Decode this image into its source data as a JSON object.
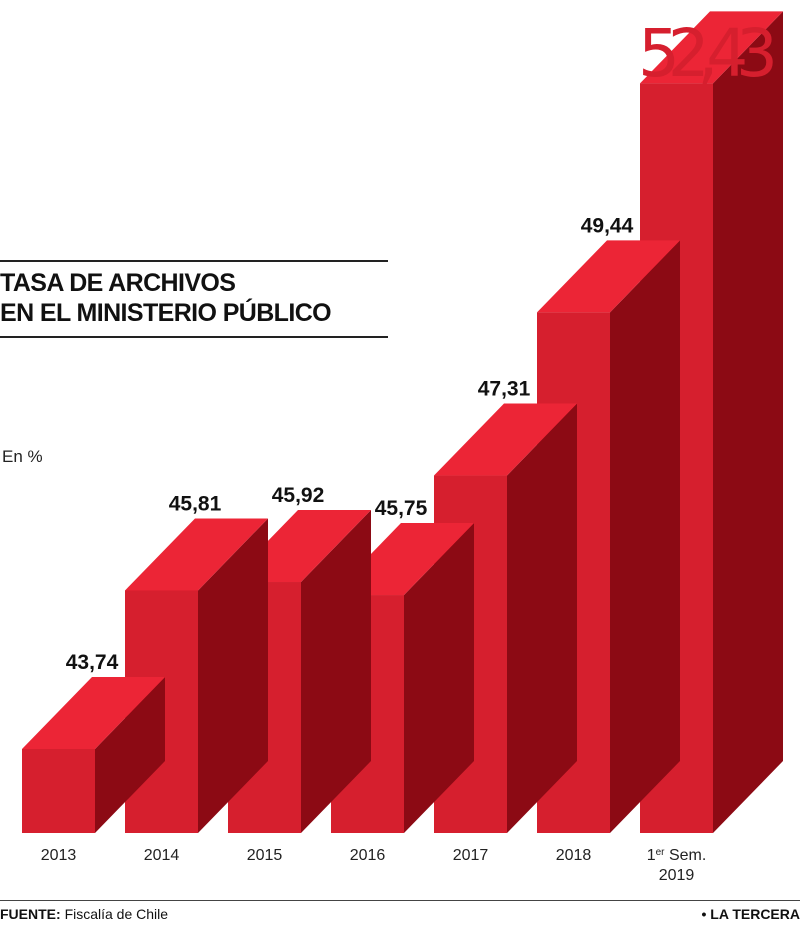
{
  "title_line1": "TASA DE ARCHIVOS",
  "title_line2": "EN EL MINISTERIO PÚBLICO",
  "unit_label": "En %",
  "footer": {
    "source_label": "FUENTE:",
    "source_text": "Fiscalía de Chile",
    "brand": "• LA TERCERA"
  },
  "colors": {
    "front": "#d61f2e",
    "top": "#ec2536",
    "side": "#8c0a14",
    "highlight_label": "#d61f2e"
  },
  "chart_data": {
    "type": "bar",
    "categories": [
      "2013",
      "2014",
      "2015",
      "2016",
      "2017",
      "2018",
      "1er Sem. 2019"
    ],
    "category_labels": [
      {
        "main": "2013"
      },
      {
        "main": "2014"
      },
      {
        "main": "2015"
      },
      {
        "main": "2016"
      },
      {
        "main": "2017"
      },
      {
        "main": "2018"
      },
      {
        "main": "1",
        "sup": "er",
        "rest": " Sem.",
        "line2": "2019"
      }
    ],
    "values": [
      43.74,
      45.81,
      45.92,
      45.75,
      47.31,
      49.44,
      52.43
    ],
    "value_labels": [
      "43,74",
      "45,81",
      "45,92",
      "45,75",
      "47,31",
      "49,44",
      "52,43"
    ],
    "ylabel": "En %",
    "style": "3d-bar"
  }
}
